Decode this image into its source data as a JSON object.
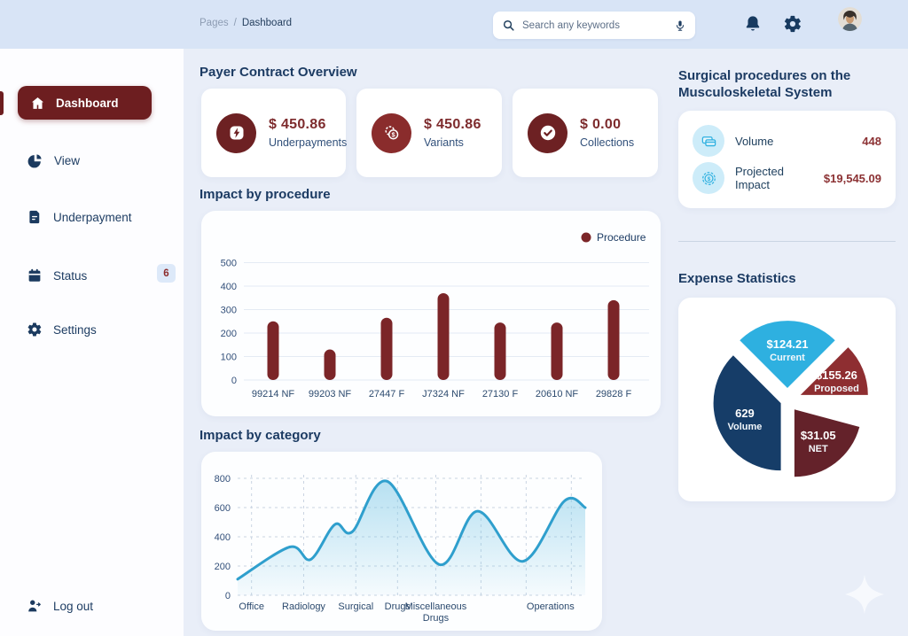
{
  "topbar": {
    "breadcrumb": {
      "section": "Pages",
      "separator": "/",
      "current": "Dashboard"
    },
    "search_placeholder": "Search any keywords"
  },
  "sidebar": {
    "items": [
      {
        "label": "Dashboard",
        "active": true
      },
      {
        "label": "View"
      },
      {
        "label": "Underpayment"
      },
      {
        "label": "Status",
        "badge": "6"
      },
      {
        "label": "Settings"
      }
    ],
    "logout_label": "Log out"
  },
  "overview": {
    "title": "Payer Contract Overview",
    "cards": [
      {
        "amount": "$ 450.86",
        "label": "Underpayments",
        "icon": "lightning-icon"
      },
      {
        "amount": "$ 450.86",
        "label": "Variants",
        "icon": "coins-icon"
      },
      {
        "amount": "$ 0.00",
        "label": "Collections",
        "icon": "check-circle-icon"
      }
    ]
  },
  "sections": {
    "bar_title": "Impact by procedure",
    "area_title": "Impact by category",
    "right_title_line1": "Surgical procedures on the",
    "right_title_line2": "Musculoskeletal System",
    "expense_title": "Expense Statistics"
  },
  "right_panel": {
    "rows": [
      {
        "icon": "cards-icon",
        "label": "Volume",
        "value": "448"
      },
      {
        "icon": "coin-dollar-icon",
        "label": "Projected Impact",
        "value": "$19,545.09"
      }
    ]
  },
  "colors": {
    "maroon": "#6d1e20",
    "bar_maroon": "#7b2528",
    "navy": "#1c3b63",
    "accent_blue": "#2eb0e0",
    "value_red": "#8c3234",
    "topbar_bg": "#d8e4f6",
    "main_bg": "#e9eef8"
  },
  "chart_data": [
    {
      "type": "bar",
      "title": "Impact by procedure",
      "legend": [
        "Procedure"
      ],
      "legend_position": "top-right",
      "categories": [
        "99214 NF",
        "99203 NF",
        "27447 F",
        "J7324 NF",
        "27130 F",
        "20610 NF",
        "29828 F"
      ],
      "values": [
        250,
        130,
        265,
        370,
        245,
        245,
        340
      ],
      "ylim": [
        0,
        500
      ],
      "yticks": [
        0,
        100,
        200,
        300,
        400,
        500
      ],
      "bar_color": "#7b2528",
      "grid": "horizontal"
    },
    {
      "type": "area",
      "title": "Impact by category",
      "categories": [
        "Office",
        "Radiology",
        "Surgical",
        "Drugs",
        "Miscellaneous\nDrugs",
        "Operations"
      ],
      "category_x_percent": [
        4,
        19,
        34,
        46,
        57,
        90
      ],
      "points": [
        [
          0,
          110
        ],
        [
          15,
          330
        ],
        [
          21,
          245
        ],
        [
          28,
          485
        ],
        [
          33,
          435
        ],
        [
          43,
          780
        ],
        [
          58,
          210
        ],
        [
          69,
          575
        ],
        [
          82,
          232
        ],
        [
          94,
          645
        ],
        [
          100,
          600
        ]
      ],
      "vgrid_percent": [
        4,
        19,
        34,
        46,
        57,
        70,
        83,
        96
      ],
      "ylim": [
        0,
        800
      ],
      "yticks": [
        0,
        200,
        400,
        600,
        800
      ],
      "line_color": "#2f9fcd",
      "fill_color": "#7dc8e6",
      "grid": "dashed-both"
    },
    {
      "type": "pie",
      "title": "Expense Statistics",
      "slices": [
        {
          "label": "Current",
          "value": "$124.21",
          "color": "#2eb0e0",
          "start_deg": 45,
          "end_deg": 135,
          "explode": 14
        },
        {
          "label": "Proposed",
          "value": "$155.26",
          "color": "#8e2e31",
          "start_deg": 0,
          "end_deg": 45,
          "explode": 16
        },
        {
          "label": "NET",
          "value": "$31.05",
          "color": "#64222a",
          "start_deg": -90,
          "end_deg": -15,
          "explode": 13
        },
        {
          "label": "Volume",
          "value": "629",
          "color": "#163d68",
          "start_deg": 135,
          "end_deg": 270,
          "explode": 8
        }
      ]
    }
  ]
}
